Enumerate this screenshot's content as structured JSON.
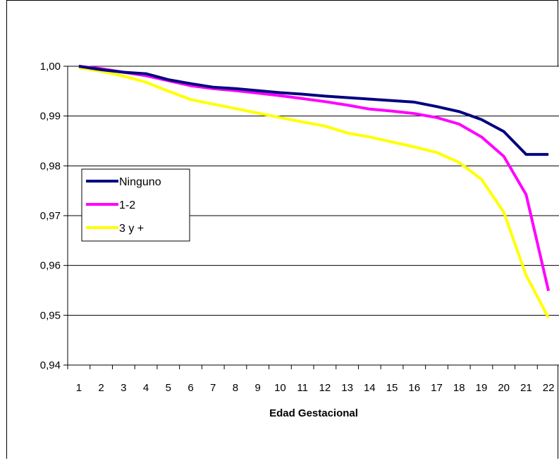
{
  "chart_data": {
    "type": "line",
    "title": "",
    "xlabel": "Edad Gestacional",
    "ylabel": "",
    "categories": [
      "1",
      "2",
      "3",
      "4",
      "5",
      "6",
      "7",
      "8",
      "9",
      "10",
      "11",
      "12",
      "13",
      "14",
      "15",
      "16",
      "17",
      "18",
      "19",
      "20",
      "21",
      "22"
    ],
    "ylim": [
      0.94,
      1.0
    ],
    "yticks": [
      "0,94",
      "0,95",
      "0,96",
      "0,97",
      "0,98",
      "0,99",
      "1,00"
    ],
    "grid": "horizontal",
    "legend_position": "left",
    "series": [
      {
        "name": "Ninguno",
        "color": "#000080",
        "values": [
          1.0,
          0.9993,
          0.9988,
          0.9985,
          0.9973,
          0.9965,
          0.9958,
          0.9955,
          0.9951,
          0.9947,
          0.9944,
          0.994,
          0.9937,
          0.9934,
          0.9931,
          0.9928,
          0.9919,
          0.9909,
          0.9893,
          0.9869,
          0.9823,
          0.9823
        ]
      },
      {
        "name": "1-2",
        "color": "#FF00FF",
        "values": [
          1.0,
          0.9995,
          0.9988,
          0.9981,
          0.9971,
          0.9961,
          0.9955,
          0.9951,
          0.9946,
          0.9941,
          0.9935,
          0.9929,
          0.9922,
          0.9914,
          0.991,
          0.9905,
          0.9897,
          0.9884,
          0.9858,
          0.9819,
          0.9742,
          0.9549
        ]
      },
      {
        "name": "3 y +",
        "color": "#FFFF00",
        "values": [
          0.9997,
          0.999,
          0.998,
          0.9968,
          0.995,
          0.9933,
          0.9924,
          0.9915,
          0.9906,
          0.9897,
          0.9888,
          0.988,
          0.9866,
          0.9858,
          0.9848,
          0.9838,
          0.9827,
          0.9807,
          0.9773,
          0.9707,
          0.958,
          0.9495
        ]
      }
    ]
  }
}
